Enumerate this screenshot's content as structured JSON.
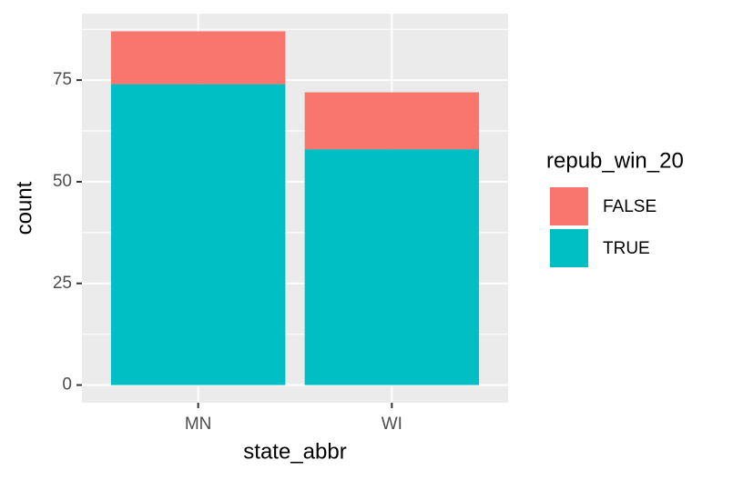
{
  "chart_data": {
    "type": "stacked_bar",
    "x_label": "state_abbr",
    "y_label": "count",
    "categories": [
      "MN",
      "WI"
    ],
    "series": [
      {
        "name": "FALSE",
        "color": "#F8766D",
        "values": [
          13,
          14
        ]
      },
      {
        "name": "TRUE",
        "color": "#00BFC4",
        "values": [
          74,
          58
        ]
      }
    ],
    "legend_title": "repub_win_20",
    "ylim": [
      -4.35,
      91.35
    ],
    "yticks": [
      0,
      25,
      50,
      75
    ],
    "minor_yticks": [
      12.5,
      37.5,
      62.5,
      87.5
    ],
    "grid": true,
    "legend": "right"
  }
}
